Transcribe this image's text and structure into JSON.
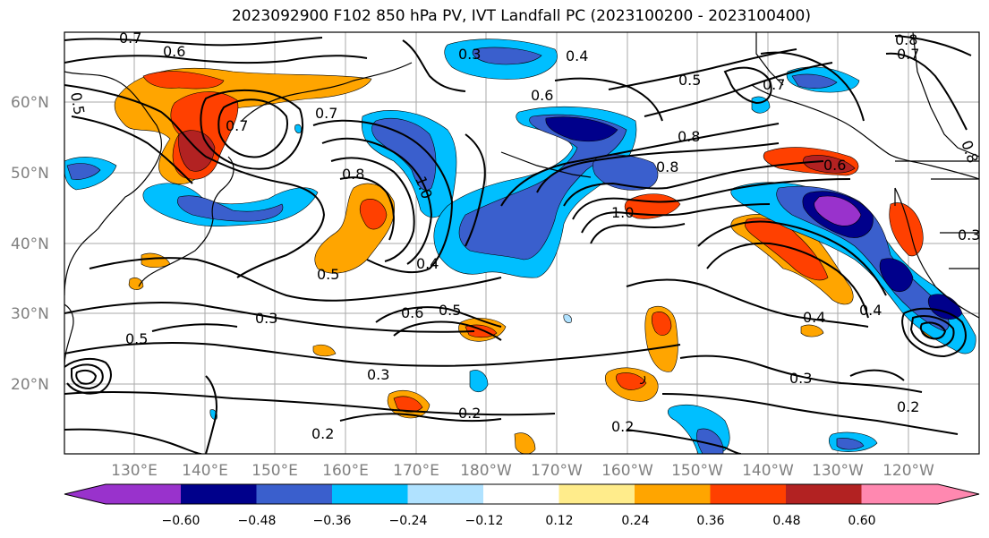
{
  "title": "2023092900 F102 850 hPa PV, IVT Landfall PC (2023100200 - 2023100400)",
  "lat_labels": [
    "60°N",
    "50°N",
    "40°N",
    "30°N",
    "20°N"
  ],
  "lon_labels": [
    "130°E",
    "140°E",
    "150°E",
    "160°E",
    "170°E",
    "180°W",
    "170°W",
    "160°W",
    "150°W",
    "140°W",
    "130°W",
    "120°W"
  ],
  "colorbar": {
    "colors": [
      "#9932CC",
      "#00008B",
      "#3A5FCD",
      "#00BFFF",
      "#B0E2FF",
      "#FFFFFF",
      "#FFEC8B",
      "#FFA500",
      "#FF4000",
      "#B22222",
      "#FF88B0"
    ],
    "tick_labels": [
      "−0.60",
      "−0.48",
      "−0.36",
      "−0.24",
      "−0.12",
      "0.12",
      "0.24",
      "0.36",
      "0.48",
      "0.60"
    ]
  },
  "contour_labels": [
    "0.7",
    "0.6",
    "0.5",
    "0.3",
    "0.4",
    "0.6",
    "0.5",
    "0.8",
    "0.7",
    "0.8",
    "0.7",
    "0.7",
    "0.6",
    "0.8",
    "0.8",
    "1.0",
    "0.8",
    "0.7",
    "1.0",
    "0.5",
    "0.4",
    "0.5",
    "0.6",
    "0.5",
    "0.3",
    "0.3",
    "0.2",
    "0.2",
    "0.4",
    "0.3",
    "0.2",
    "0.3",
    "0.2",
    "0.4"
  ]
}
